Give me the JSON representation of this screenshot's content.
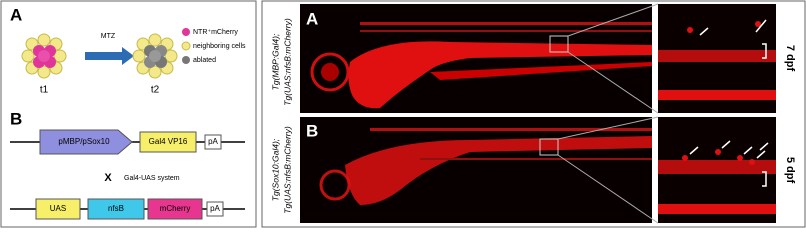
{
  "left": {
    "panel_a": {
      "letter": "A",
      "drug": "MTZ",
      "legend": [
        "NTR⁺mCherry",
        "neighboring cells",
        "ablated"
      ],
      "times": [
        "t1",
        "t2"
      ]
    },
    "panel_b": {
      "letter": "B",
      "construct1": [
        "pMBP/pSox10",
        "Gal4 VP16",
        "pA"
      ],
      "cross": "X",
      "system": "Gal4-UAS system",
      "construct2": [
        "UAS",
        "nfsB",
        "mCherry",
        "pA"
      ]
    }
  },
  "right": {
    "panel_a": {
      "letter": "A",
      "genotype": [
        "Tg(MBP:Gal4);",
        "Tg(UAS:nfsB:mCherry)"
      ],
      "stage": "7 dpf"
    },
    "panel_b": {
      "letter": "B",
      "genotype": [
        "Tg(Sox10:Gal4);",
        "Tg(UAS:nfsB:mCherry)"
      ],
      "stage": "5 dpf"
    }
  }
}
